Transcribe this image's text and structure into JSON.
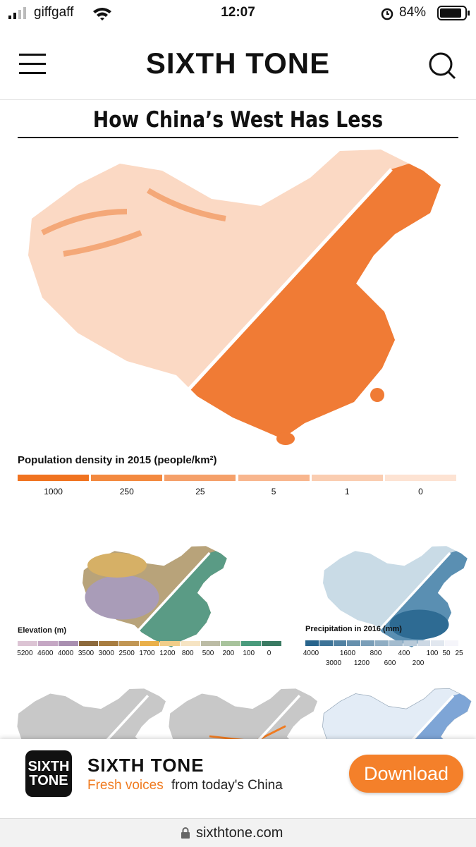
{
  "status_bar": {
    "carrier": "giffgaff",
    "time": "12:07",
    "battery": "84%"
  },
  "header": {
    "logo": "SIXTH TONE"
  },
  "article": {
    "title": "How China’s West Has Less",
    "population_legend": {
      "title": "Population density in 2015 (people/km²)",
      "labels": [
        "1000",
        "250",
        "25",
        "5",
        "1",
        "0"
      ]
    },
    "elevation_legend": {
      "title": "Elevation (m)",
      "labels": [
        "5200",
        "4600",
        "4000",
        "3500",
        "3000",
        "2500",
        "1700",
        "1200",
        "800",
        "500",
        "200",
        "100",
        "0"
      ]
    },
    "precipitation_legend": {
      "title": "Precipitation in 2016 (mm)",
      "labels_top": [
        "4000",
        "1600",
        "800",
        "400",
        "100",
        "50",
        "25"
      ],
      "labels_bottom": [
        "3000",
        "1200",
        "600",
        "200"
      ]
    }
  },
  "banner": {
    "logo_line1": "SIXTH",
    "logo_line2": "TONE",
    "name": "SIXTH TONE",
    "tagline_highlight": "Fresh voices",
    "tagline_rest": "from today's China",
    "button": "Download"
  },
  "url_bar": {
    "url": "sixthtone.com"
  }
}
